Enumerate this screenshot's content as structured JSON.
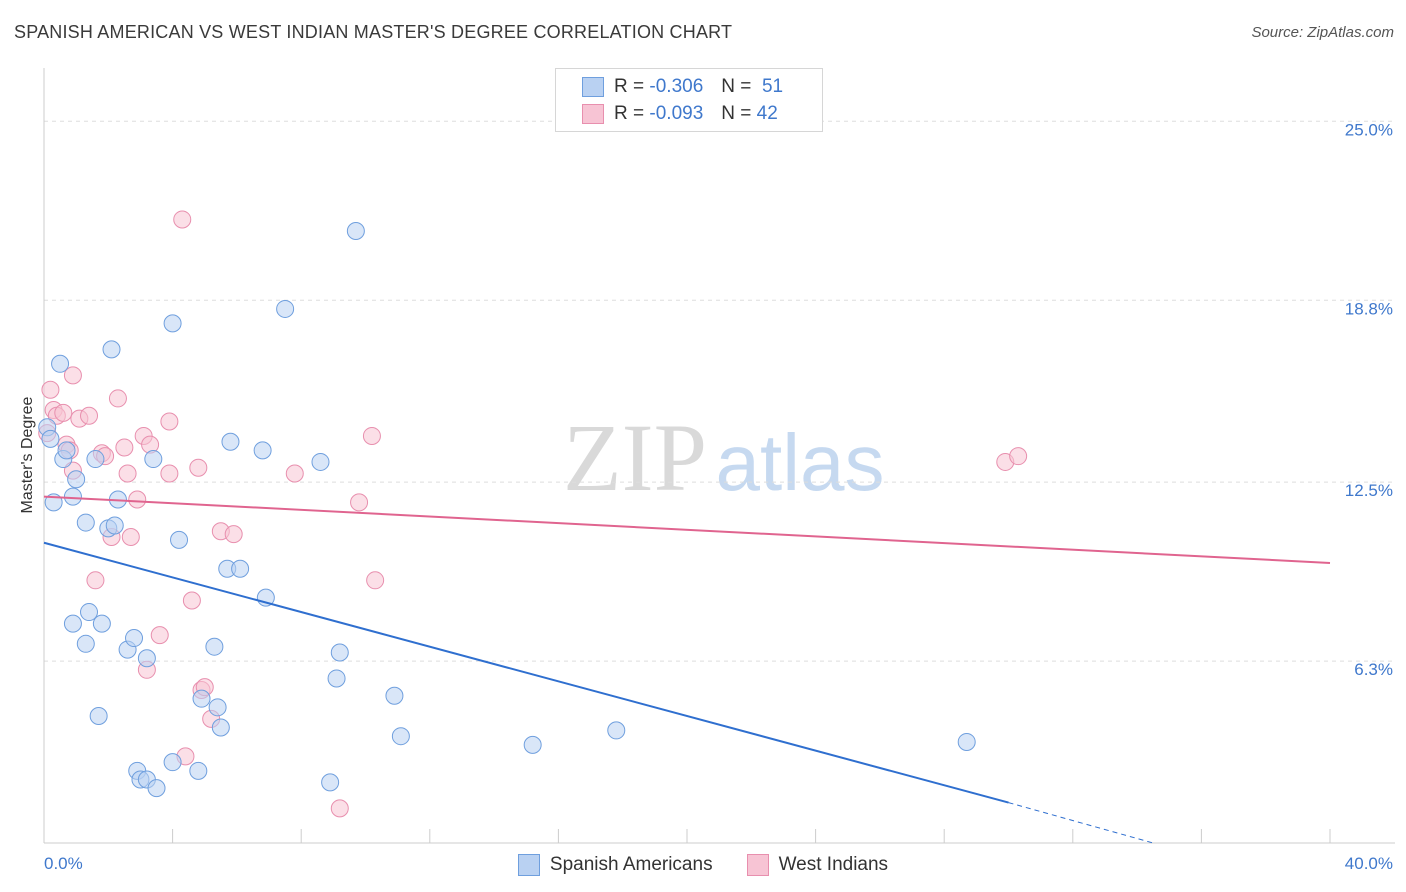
{
  "title": "SPANISH AMERICAN VS WEST INDIAN MASTER'S DEGREE CORRELATION CHART",
  "source": "Source: ZipAtlas.com",
  "watermark": {
    "zip": "ZIP",
    "atlas": "atlas"
  },
  "legend": {
    "rows": [
      {
        "r_label": "R =",
        "r_value": "-0.306",
        "n_label": "N =",
        "n_value": "51"
      },
      {
        "r_label": "R =",
        "r_value": "-0.093",
        "n_label": "N =",
        "n_value": "42"
      }
    ]
  },
  "colors": {
    "blue_fill": "#b9d1f2",
    "blue_stroke": "#6f9fde",
    "blue_line": "#2f6fcf",
    "pink_fill": "#f7c4d4",
    "pink_stroke": "#e88fae",
    "pink_line": "#e0648f",
    "grid": "#dddddd",
    "axis_text": "#3f78cc"
  },
  "chart_data": {
    "type": "scatter",
    "title": "SPANISH AMERICAN VS WEST INDIAN MASTER'S DEGREE CORRELATION CHART",
    "xlabel": "",
    "ylabel": "Master's Degree",
    "xlim": [
      0,
      40
    ],
    "ylim": [
      0,
      26.5
    ],
    "x_tick_labels": [
      "0.0%",
      "40.0%"
    ],
    "y_ticks": [
      6.3,
      12.5,
      18.8,
      25.0
    ],
    "y_tick_labels": [
      "6.3%",
      "12.5%",
      "18.8%",
      "25.0%"
    ],
    "series": [
      {
        "name": "Spanish Americans",
        "color": "blue",
        "R": -0.306,
        "N": 51,
        "trend": {
          "x": [
            0,
            30
          ],
          "y": [
            10.4,
            1.4
          ],
          "dashed_to": [
            34.5,
            0
          ]
        },
        "points": [
          [
            0.1,
            14.4
          ],
          [
            0.2,
            14.0
          ],
          [
            0.3,
            11.8
          ],
          [
            0.5,
            16.6
          ],
          [
            0.6,
            13.3
          ],
          [
            0.7,
            13.6
          ],
          [
            0.9,
            12.0
          ],
          [
            1.0,
            12.6
          ],
          [
            1.3,
            11.1
          ],
          [
            1.6,
            13.3
          ],
          [
            2.1,
            17.1
          ],
          [
            2.3,
            11.9
          ],
          [
            2.0,
            10.9
          ],
          [
            2.2,
            11.0
          ],
          [
            3.4,
            13.3
          ],
          [
            4.0,
            18.0
          ],
          [
            4.2,
            10.5
          ],
          [
            5.8,
            13.9
          ],
          [
            5.7,
            9.5
          ],
          [
            6.1,
            9.5
          ],
          [
            6.8,
            13.6
          ],
          [
            7.5,
            18.5
          ],
          [
            8.6,
            13.2
          ],
          [
            9.7,
            21.2
          ],
          [
            6.9,
            8.5
          ],
          [
            0.9,
            7.6
          ],
          [
            1.4,
            8.0
          ],
          [
            1.8,
            7.6
          ],
          [
            1.3,
            6.9
          ],
          [
            2.6,
            6.7
          ],
          [
            2.8,
            7.1
          ],
          [
            3.2,
            6.4
          ],
          [
            5.3,
            6.8
          ],
          [
            4.9,
            5.0
          ],
          [
            5.4,
            4.7
          ],
          [
            5.5,
            4.0
          ],
          [
            1.7,
            4.4
          ],
          [
            9.2,
            6.6
          ],
          [
            9.1,
            5.7
          ],
          [
            10.9,
            5.1
          ],
          [
            11.1,
            3.7
          ],
          [
            15.2,
            3.4
          ],
          [
            17.8,
            3.9
          ],
          [
            28.7,
            3.5
          ],
          [
            2.9,
            2.5
          ],
          [
            3.0,
            2.2
          ],
          [
            3.2,
            2.2
          ],
          [
            3.5,
            1.9
          ],
          [
            4.0,
            2.8
          ],
          [
            4.8,
            2.5
          ],
          [
            8.9,
            2.1
          ]
        ]
      },
      {
        "name": "West Indians",
        "color": "pink",
        "R": -0.093,
        "N": 42,
        "trend": {
          "x": [
            0,
            40
          ],
          "y": [
            12.0,
            9.7
          ]
        },
        "points": [
          [
            0.2,
            15.7
          ],
          [
            0.3,
            15.0
          ],
          [
            0.4,
            14.8
          ],
          [
            0.6,
            14.9
          ],
          [
            0.9,
            16.2
          ],
          [
            1.1,
            14.7
          ],
          [
            1.4,
            14.8
          ],
          [
            0.7,
            13.8
          ],
          [
            0.8,
            13.6
          ],
          [
            0.9,
            12.9
          ],
          [
            1.8,
            13.5
          ],
          [
            2.3,
            15.4
          ],
          [
            2.5,
            13.7
          ],
          [
            2.6,
            12.8
          ],
          [
            3.1,
            14.1
          ],
          [
            3.3,
            13.8
          ],
          [
            3.9,
            14.6
          ],
          [
            3.9,
            12.8
          ],
          [
            4.3,
            21.6
          ],
          [
            4.8,
            13.0
          ],
          [
            7.8,
            12.8
          ],
          [
            10.2,
            14.1
          ],
          [
            9.8,
            11.8
          ],
          [
            2.9,
            11.9
          ],
          [
            2.1,
            10.6
          ],
          [
            2.7,
            10.6
          ],
          [
            5.5,
            10.8
          ],
          [
            5.9,
            10.7
          ],
          [
            1.6,
            9.1
          ],
          [
            4.6,
            8.4
          ],
          [
            10.3,
            9.1
          ],
          [
            3.6,
            7.2
          ],
          [
            4.9,
            5.3
          ],
          [
            5.0,
            5.4
          ],
          [
            3.2,
            6.0
          ],
          [
            5.2,
            4.3
          ],
          [
            4.4,
            3.0
          ],
          [
            9.2,
            1.2
          ],
          [
            29.9,
            13.2
          ],
          [
            30.3,
            13.4
          ],
          [
            0.1,
            14.2
          ],
          [
            1.9,
            13.4
          ]
        ]
      }
    ]
  },
  "bottom_legend": [
    {
      "label": "Spanish Americans"
    },
    {
      "label": "West Indians"
    }
  ]
}
